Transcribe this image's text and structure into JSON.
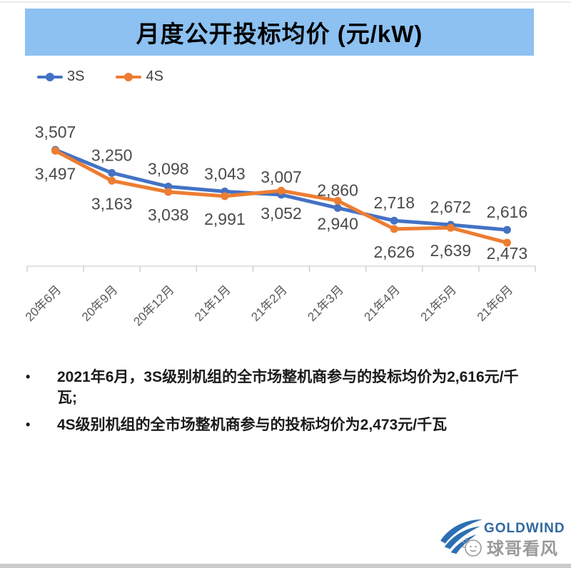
{
  "title": {
    "text": "月度公开投标均价 (元/kW)",
    "banner_color": "#8CC1F1"
  },
  "chart_data": {
    "type": "line",
    "title": "月度公开投标均价 (元/kW)",
    "categories": [
      "20年6月",
      "20年9月",
      "20年12月",
      "21年1月",
      "21年2月",
      "21年3月",
      "21年4月",
      "21年5月",
      "21年6月"
    ],
    "series": [
      {
        "name": "3S",
        "color": "#4472C4",
        "values": [
          3507,
          3250,
          3098,
          3043,
          3007,
          2860,
          2718,
          2672,
          2616
        ],
        "label_position": "above"
      },
      {
        "name": "4S",
        "color": "#ED7D31",
        "values": [
          3497,
          3163,
          3038,
          2991,
          3052,
          2940,
          2626,
          2639,
          2473
        ],
        "label_position": "below"
      }
    ],
    "xlabel": "",
    "ylabel": "",
    "ylim": [
      2400,
      3600
    ],
    "grid": false,
    "y_axis_visible": false,
    "legend_position": "top-left",
    "data_labels": true,
    "number_format": "thousands-comma",
    "label_color": "#4a4a4a",
    "axis_color": "#D8D8D8"
  },
  "notes": {
    "bullets": [
      "2021年6月，3S级别机组的全市场整机商参与的投标均价为2,616元/千瓦;",
      "4S级别机组的全市场整机商参与的投标均价为2,473元/千瓦"
    ]
  },
  "footer": {
    "logo_text": "GOLDWIND",
    "logo_color": "#30699F",
    "swoosh_color": "#2C6FB2",
    "watermark_text": "球哥看风",
    "watermark_color": "#8f8f8f"
  }
}
